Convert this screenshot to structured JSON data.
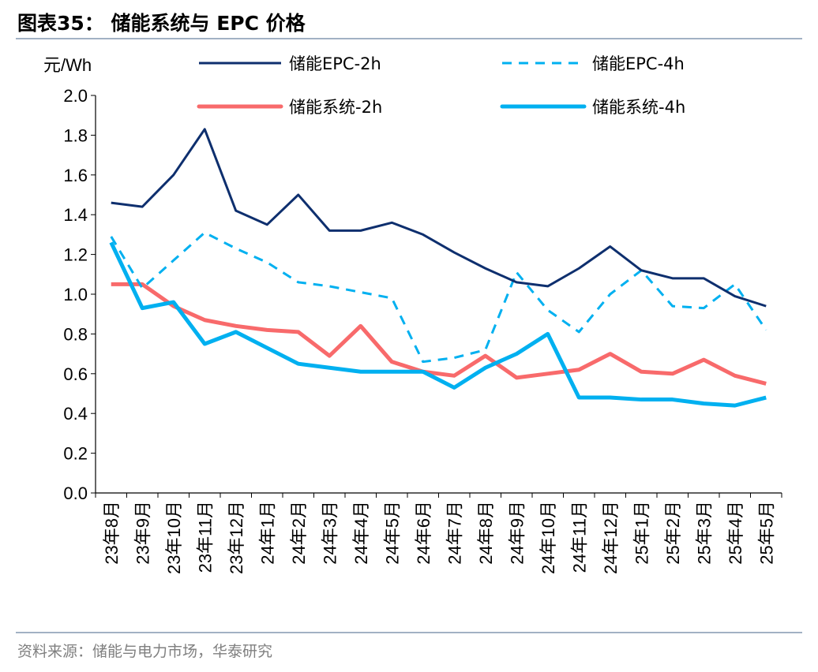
{
  "header": {
    "title": "图表35：  储能系统与 EPC 价格"
  },
  "footer": {
    "source": "资料来源：储能与电力市场，华泰研究"
  },
  "chart_data": {
    "type": "line",
    "title": "",
    "ylabel": "元/Wh",
    "xlabel": "",
    "ylim": [
      0,
      2.0
    ],
    "yticks": [
      "0.0",
      "0.2",
      "0.4",
      "0.6",
      "0.8",
      "1.0",
      "1.2",
      "1.4",
      "1.6",
      "1.8",
      "2.0"
    ],
    "grid": false,
    "legend_position": "top",
    "categories": [
      "23年8月",
      "23年9月",
      "23年10月",
      "23年11月",
      "23年12月",
      "24年1月",
      "24年2月",
      "24年3月",
      "24年4月",
      "24年5月",
      "24年6月",
      "24年7月",
      "24年8月",
      "24年9月",
      "24年10月",
      "24年11月",
      "24年12月",
      "25年1月",
      "25年2月",
      "25年3月",
      "25年4月",
      "25年5月"
    ],
    "series": [
      {
        "name": "储能EPC-2h",
        "color": "#0e2f6e",
        "style": "solid",
        "values": [
          1.46,
          1.44,
          1.6,
          1.83,
          1.42,
          1.35,
          1.5,
          1.32,
          1.32,
          1.36,
          1.3,
          1.21,
          1.13,
          1.06,
          1.04,
          1.13,
          1.24,
          1.12,
          1.08,
          1.08,
          0.99,
          0.94
        ]
      },
      {
        "name": "储能EPC-4h",
        "color": "#00b0f0",
        "style": "dashed",
        "values": [
          1.29,
          1.03,
          1.17,
          1.31,
          1.23,
          1.16,
          1.06,
          1.04,
          1.01,
          0.98,
          0.66,
          0.68,
          0.72,
          1.11,
          0.92,
          0.81,
          1.0,
          1.12,
          0.94,
          0.93,
          1.05,
          0.82
        ]
      },
      {
        "name": "储能系统-2h",
        "color": "#f86a6b",
        "style": "thick",
        "values": [
          1.05,
          1.05,
          0.94,
          0.87,
          0.84,
          0.82,
          0.81,
          0.69,
          0.84,
          0.66,
          0.61,
          0.59,
          0.69,
          0.58,
          0.6,
          0.62,
          0.7,
          0.61,
          0.6,
          0.67,
          0.59,
          0.55
        ]
      },
      {
        "name": "储能系统-4h",
        "color": "#00b0f0",
        "style": "thick",
        "values": [
          1.26,
          0.93,
          0.96,
          0.75,
          0.81,
          0.73,
          0.65,
          0.63,
          0.61,
          0.61,
          0.61,
          0.53,
          0.63,
          0.7,
          0.8,
          0.48,
          0.48,
          0.47,
          0.47,
          0.45,
          0.44,
          0.48
        ]
      }
    ]
  }
}
